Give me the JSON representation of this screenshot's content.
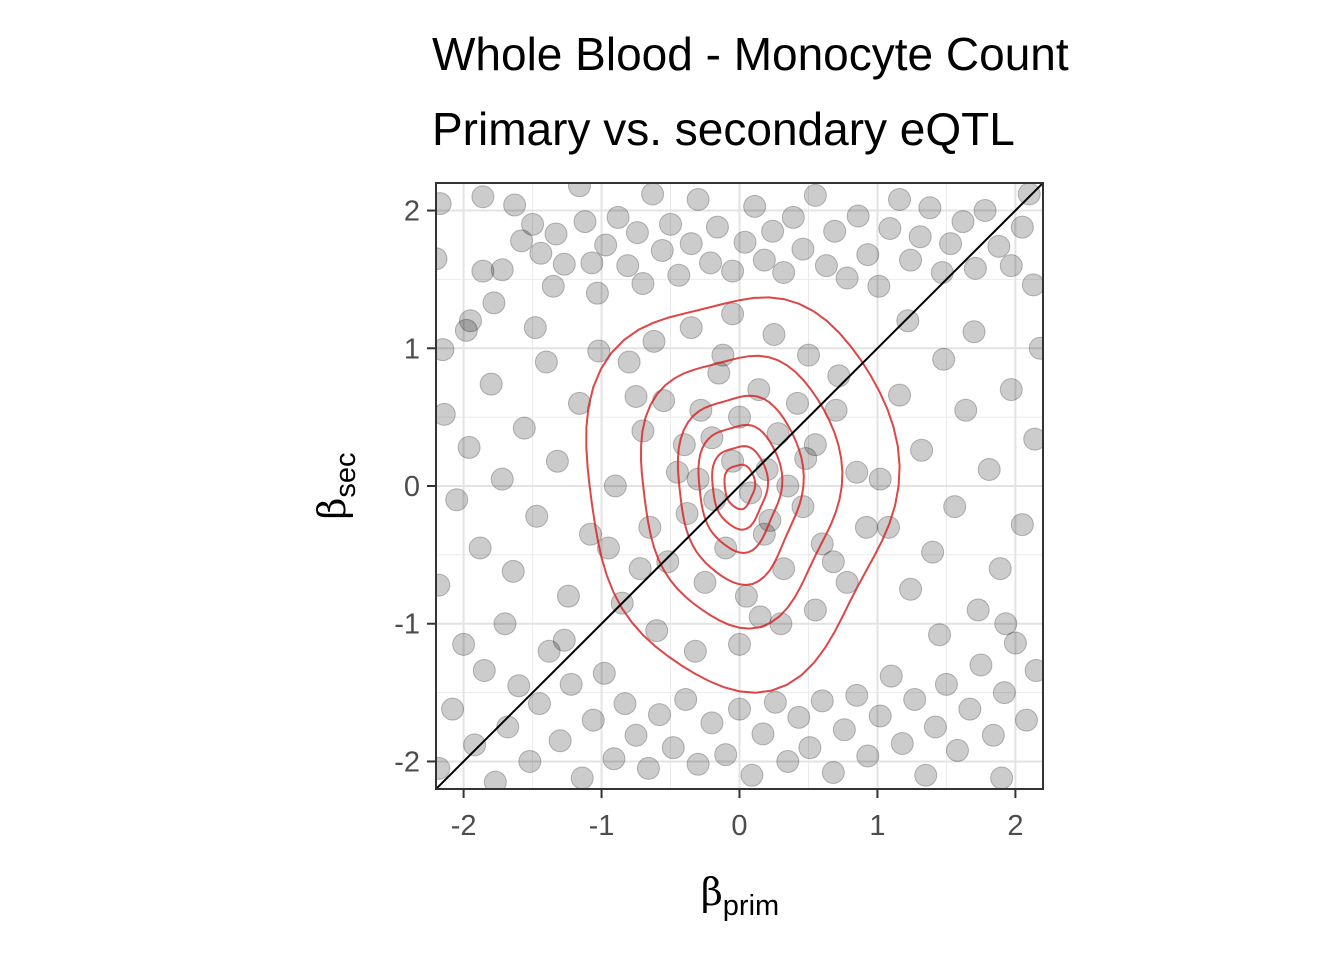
{
  "chart_data": {
    "type": "scatter",
    "title": [
      "Whole Blood - Monocyte Count",
      "Primary vs. secondary eQTL"
    ],
    "xlabel": {
      "symbol": "β",
      "subscript": "prim"
    },
    "ylabel": {
      "symbol": "β",
      "subscript": "sec"
    },
    "xlim": [
      -2.2,
      2.2
    ],
    "ylim": [
      -2.2,
      2.2
    ],
    "xticks": [
      -2,
      -1,
      0,
      1,
      2
    ],
    "yticks": [
      -2,
      -1,
      0,
      1,
      2
    ],
    "xtick_labels": [
      "-2",
      "-1",
      "0",
      "1",
      "2"
    ],
    "ytick_labels": [
      "-2",
      "-1",
      "0",
      "1",
      "2"
    ],
    "grid": true,
    "reference_line": {
      "slope": 1,
      "intercept": 0,
      "color": "#000000"
    },
    "point_color": "#000000",
    "point_opacity": 0.2,
    "contour_color": "#d62728",
    "contour_center": [
      0,
      0
    ],
    "contours": [
      {
        "rx": 1.12,
        "ry": 1.42
      },
      {
        "rx": 0.72,
        "ry": 0.98
      },
      {
        "rx": 0.45,
        "ry": 0.68
      },
      {
        "rx": 0.3,
        "ry": 0.46
      },
      {
        "rx": 0.2,
        "ry": 0.3
      },
      {
        "rx": 0.11,
        "ry": 0.16
      }
    ],
    "points": [
      [
        -2.17,
        2.05
      ],
      [
        -2.2,
        1.65
      ],
      [
        -2.15,
        0.99
      ],
      [
        -1.98,
        1.13
      ],
      [
        -1.86,
        2.1
      ],
      [
        -1.86,
        1.56
      ],
      [
        -1.78,
        1.33
      ],
      [
        -1.72,
        1.57
      ],
      [
        -1.63,
        2.04
      ],
      [
        -1.58,
        1.78
      ],
      [
        -1.5,
        1.9
      ],
      [
        -1.44,
        1.69
      ],
      [
        -1.35,
        1.45
      ],
      [
        -1.33,
        1.83
      ],
      [
        -1.27,
        1.61
      ],
      [
        -1.16,
        2.18
      ],
      [
        -1.12,
        1.92
      ],
      [
        -1.07,
        1.62
      ],
      [
        -1.03,
        1.4
      ],
      [
        -0.97,
        1.75
      ],
      [
        -0.88,
        1.95
      ],
      [
        -0.81,
        1.6
      ],
      [
        -0.74,
        1.84
      ],
      [
        -0.7,
        1.47
      ],
      [
        -0.63,
        2.12
      ],
      [
        -0.56,
        1.71
      ],
      [
        -0.5,
        1.9
      ],
      [
        -0.44,
        1.53
      ],
      [
        -0.35,
        1.76
      ],
      [
        -0.3,
        2.08
      ],
      [
        -0.21,
        1.62
      ],
      [
        -0.16,
        1.88
      ],
      [
        -0.05,
        1.56
      ],
      [
        0.04,
        1.77
      ],
      [
        0.11,
        2.03
      ],
      [
        0.18,
        1.64
      ],
      [
        0.24,
        1.85
      ],
      [
        0.32,
        1.55
      ],
      [
        0.39,
        1.95
      ],
      [
        0.46,
        1.72
      ],
      [
        0.55,
        2.11
      ],
      [
        0.63,
        1.6
      ],
      [
        0.69,
        1.85
      ],
      [
        0.78,
        1.51
      ],
      [
        0.86,
        1.96
      ],
      [
        0.93,
        1.68
      ],
      [
        1.01,
        1.45
      ],
      [
        1.09,
        1.87
      ],
      [
        1.16,
        2.08
      ],
      [
        1.24,
        1.64
      ],
      [
        1.31,
        1.81
      ],
      [
        1.38,
        2.02
      ],
      [
        1.47,
        1.55
      ],
      [
        1.53,
        1.76
      ],
      [
        1.62,
        1.92
      ],
      [
        1.71,
        1.58
      ],
      [
        1.78,
        2.0
      ],
      [
        1.88,
        1.74
      ],
      [
        1.97,
        1.6
      ],
      [
        2.05,
        1.88
      ],
      [
        2.13,
        1.46
      ],
      [
        2.1,
        2.12
      ],
      [
        -2.18,
        -2.05
      ],
      [
        -2.08,
        -1.62
      ],
      [
        -2.0,
        -1.15
      ],
      [
        -1.92,
        -1.88
      ],
      [
        -1.85,
        -1.34
      ],
      [
        -1.77,
        -2.15
      ],
      [
        -1.68,
        -1.75
      ],
      [
        -1.6,
        -1.45
      ],
      [
        -1.52,
        -2.0
      ],
      [
        -1.45,
        -1.58
      ],
      [
        -1.38,
        -1.2
      ],
      [
        -1.3,
        -1.85
      ],
      [
        -1.22,
        -1.44
      ],
      [
        -1.14,
        -2.12
      ],
      [
        -1.06,
        -1.7
      ],
      [
        -0.98,
        -1.36
      ],
      [
        -0.91,
        -1.98
      ],
      [
        -0.83,
        -1.58
      ],
      [
        -0.75,
        -1.81
      ],
      [
        -0.66,
        -2.05
      ],
      [
        -0.58,
        -1.66
      ],
      [
        -0.48,
        -1.9
      ],
      [
        -0.39,
        -1.55
      ],
      [
        -0.3,
        -2.02
      ],
      [
        -0.2,
        -1.72
      ],
      [
        -0.1,
        -1.95
      ],
      [
        0.0,
        -1.62
      ],
      [
        0.09,
        -2.1
      ],
      [
        0.17,
        -1.8
      ],
      [
        0.26,
        -1.57
      ],
      [
        0.35,
        -2.0
      ],
      [
        0.43,
        -1.68
      ],
      [
        0.51,
        -1.9
      ],
      [
        0.6,
        -1.56
      ],
      [
        0.68,
        -2.08
      ],
      [
        0.76,
        -1.77
      ],
      [
        0.85,
        -1.52
      ],
      [
        0.93,
        -1.96
      ],
      [
        1.02,
        -1.67
      ],
      [
        1.1,
        -1.38
      ],
      [
        1.18,
        -1.87
      ],
      [
        1.27,
        -1.55
      ],
      [
        1.35,
        -2.1
      ],
      [
        1.42,
        -1.75
      ],
      [
        1.5,
        -1.44
      ],
      [
        1.58,
        -1.92
      ],
      [
        1.67,
        -1.62
      ],
      [
        1.75,
        -1.3
      ],
      [
        1.84,
        -1.81
      ],
      [
        1.92,
        -1.5
      ],
      [
        2.0,
        -1.14
      ],
      [
        2.08,
        -1.7
      ],
      [
        2.15,
        -1.34
      ],
      [
        1.9,
        -2.12
      ],
      [
        -2.14,
        0.52
      ],
      [
        -2.05,
        -0.1
      ],
      [
        -1.96,
        0.28
      ],
      [
        -1.88,
        -0.45
      ],
      [
        -1.8,
        0.74
      ],
      [
        -1.72,
        0.05
      ],
      [
        -1.64,
        -0.62
      ],
      [
        -1.56,
        0.42
      ],
      [
        -1.47,
        -0.22
      ],
      [
        -1.4,
        0.9
      ],
      [
        -1.32,
        0.18
      ],
      [
        -1.24,
        -0.8
      ],
      [
        -1.16,
        0.6
      ],
      [
        -1.08,
        -0.35
      ],
      [
        -1.02,
        0.98
      ],
      [
        -2.18,
        -0.72
      ],
      [
        -1.95,
        1.2
      ],
      [
        -1.7,
        -1.0
      ],
      [
        -1.48,
        1.15
      ],
      [
        -1.27,
        -1.12
      ],
      [
        2.14,
        0.34
      ],
      [
        2.05,
        -0.28
      ],
      [
        1.97,
        0.7
      ],
      [
        1.89,
        -0.6
      ],
      [
        1.81,
        0.12
      ],
      [
        1.73,
        -0.9
      ],
      [
        1.64,
        0.55
      ],
      [
        1.56,
        -0.15
      ],
      [
        1.48,
        0.92
      ],
      [
        1.4,
        -0.48
      ],
      [
        1.32,
        0.26
      ],
      [
        1.24,
        -0.75
      ],
      [
        1.16,
        0.66
      ],
      [
        1.08,
        -0.3
      ],
      [
        1.02,
        0.05
      ],
      [
        2.18,
        1.0
      ],
      [
        1.93,
        -1.0
      ],
      [
        1.7,
        1.12
      ],
      [
        1.45,
        -1.08
      ],
      [
        1.22,
        1.2
      ],
      [
        -0.7,
        0.4
      ],
      [
        -0.55,
        0.62
      ],
      [
        -0.4,
        0.3
      ],
      [
        -0.28,
        0.55
      ],
      [
        -0.15,
        0.82
      ],
      [
        0.0,
        0.5
      ],
      [
        0.14,
        0.7
      ],
      [
        0.28,
        0.38
      ],
      [
        0.42,
        0.6
      ],
      [
        0.55,
        0.3
      ],
      [
        -0.65,
        -0.3
      ],
      [
        -0.52,
        -0.55
      ],
      [
        -0.38,
        -0.2
      ],
      [
        -0.25,
        -0.7
      ],
      [
        -0.1,
        -0.45
      ],
      [
        0.05,
        -0.8
      ],
      [
        0.18,
        -0.35
      ],
      [
        0.32,
        -0.6
      ],
      [
        0.46,
        -0.15
      ],
      [
        0.6,
        -0.42
      ],
      [
        -0.3,
        0.05
      ],
      [
        -0.18,
        -0.1
      ],
      [
        -0.05,
        0.18
      ],
      [
        0.08,
        -0.05
      ],
      [
        0.2,
        0.12
      ],
      [
        0.35,
        0.0
      ],
      [
        -0.45,
        0.1
      ],
      [
        0.48,
        0.2
      ],
      [
        -0.2,
        0.35
      ],
      [
        0.22,
        -0.25
      ],
      [
        -0.8,
        0.9
      ],
      [
        -0.62,
        1.05
      ],
      [
        -0.35,
        1.15
      ],
      [
        -0.05,
        1.25
      ],
      [
        0.25,
        1.1
      ],
      [
        0.5,
        0.95
      ],
      [
        0.72,
        0.8
      ],
      [
        -0.85,
        -0.85
      ],
      [
        -0.6,
        -1.05
      ],
      [
        -0.32,
        -1.2
      ],
      [
        0.0,
        -1.15
      ],
      [
        0.3,
        -1.0
      ],
      [
        0.55,
        -0.9
      ],
      [
        0.78,
        -0.7
      ],
      [
        -0.9,
        0.0
      ],
      [
        0.85,
        0.1
      ],
      [
        -0.95,
        -0.45
      ],
      [
        0.92,
        -0.3
      ],
      [
        -0.75,
        0.65
      ],
      [
        0.7,
        0.55
      ],
      [
        -0.72,
        -0.6
      ],
      [
        0.68,
        -0.55
      ],
      [
        -0.12,
        0.95
      ],
      [
        0.15,
        -0.95
      ]
    ]
  }
}
